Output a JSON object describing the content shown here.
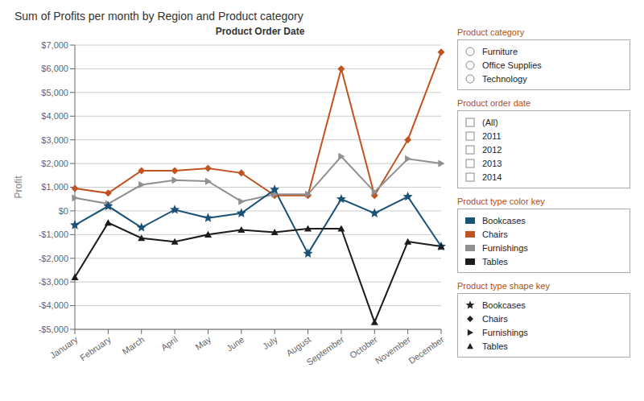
{
  "chart_data": {
    "type": "line",
    "title": "Sum of Profits per month by Region and Product category",
    "xlabel": "Product Order Date",
    "ylabel": "Profit",
    "categories": [
      "January",
      "February",
      "March",
      "April",
      "May",
      "June",
      "July",
      "August",
      "September",
      "October",
      "November",
      "December"
    ],
    "series": [
      {
        "name": "Chairs",
        "color": "#c0531f",
        "marker": "diamond",
        "values": [
          950,
          750,
          1700,
          1700,
          1800,
          1600,
          650,
          650,
          6000,
          650,
          3000,
          6700
        ]
      },
      {
        "name": "Furnishings",
        "color": "#909090",
        "marker": "triangle-right",
        "values": [
          550,
          300,
          1100,
          1300,
          1250,
          400,
          700,
          700,
          2300,
          800,
          2200,
          2000
        ]
      },
      {
        "name": "Bookcases",
        "color": "#1a5276",
        "marker": "star",
        "values": [
          -600,
          200,
          -700,
          50,
          -300,
          -100,
          900,
          -1800,
          500,
          -100,
          600,
          -1500
        ]
      },
      {
        "name": "Tables",
        "color": "#1c1c1c",
        "marker": "triangle",
        "values": [
          -2800,
          -500,
          -1150,
          -1300,
          -1000,
          -800,
          -900,
          -750,
          -750,
          -4700,
          -1300,
          -1500
        ]
      }
    ],
    "ylim": [
      -5000,
      7000
    ],
    "yticks": [
      {
        "value": -5000,
        "label": "-$5,000"
      },
      {
        "value": -4000,
        "label": "-$4,000"
      },
      {
        "value": -3000,
        "label": "-$3,000"
      },
      {
        "value": -2000,
        "label": "-$2,000"
      },
      {
        "value": -1000,
        "label": "-$1,000"
      },
      {
        "value": 0,
        "label": "$0"
      },
      {
        "value": 1000,
        "label": "$1,000"
      },
      {
        "value": 2000,
        "label": "$2,000"
      },
      {
        "value": 3000,
        "label": "$3,000"
      },
      {
        "value": 4000,
        "label": "$4,000"
      },
      {
        "value": 5000,
        "label": "$5,000"
      },
      {
        "value": 6000,
        "label": "$6,000"
      },
      {
        "value": 7000,
        "label": "$7,000"
      }
    ],
    "grid": true,
    "legend": "right",
    "annotations": [
      {
        "title": "Product category",
        "items": [
          "Furniture",
          "Office Supplies",
          "Technology"
        ]
      },
      {
        "title": "Product order date",
        "items": [
          "(All)",
          "2011",
          "2012",
          "2013",
          "2014"
        ]
      },
      {
        "title": "Product type color key",
        "items": [
          "Bookcases",
          "Chairs",
          "Furnishings",
          "Tables"
        ]
      },
      {
        "title": "Product type shape key",
        "items": [
          "Bookcases",
          "Chairs",
          "Furnishings",
          "Tables"
        ]
      }
    ]
  }
}
